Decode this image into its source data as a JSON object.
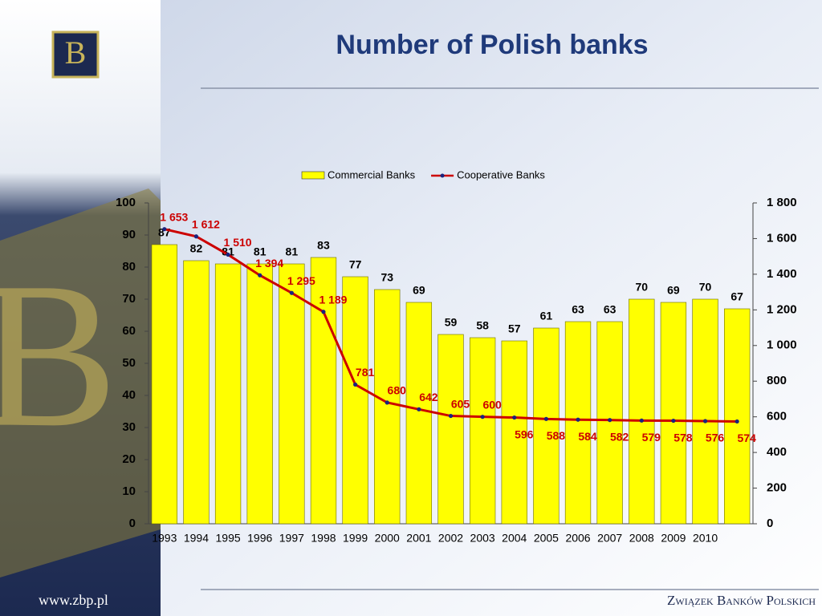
{
  "slide": {
    "url": "www.zbp.pl",
    "org": "Związek Banków Polskich"
  },
  "chart_data": {
    "type": "bar_line",
    "title": "Number of Polish banks",
    "categories": [
      "1993",
      "1994",
      "1995",
      "1996",
      "1997",
      "1998",
      "1999",
      "2000",
      "2001",
      "2002",
      "2003",
      "2004",
      "2005",
      "2006",
      "2007",
      "2008",
      "2009",
      "2010",
      null
    ],
    "series": [
      {
        "name": "Commercial Banks",
        "type": "bar",
        "color": "#ffff00",
        "values": [
          87,
          82,
          81,
          81,
          81,
          83,
          77,
          73,
          69,
          59,
          58,
          57,
          61,
          63,
          63,
          70,
          69,
          70,
          67
        ]
      },
      {
        "name": "Cooperative Banks",
        "type": "line",
        "color": "#cc0000",
        "marker_color": "#1a237e",
        "axis": "y2",
        "values": [
          1653,
          1612,
          1510,
          1394,
          1295,
          1189,
          781,
          680,
          642,
          605,
          600,
          596,
          588,
          584,
          582,
          579,
          578,
          576,
          574
        ],
        "value_labels": [
          "1 653",
          "1 612",
          "1 510",
          "1 394",
          "1 295",
          "1 189",
          "781",
          "680",
          "642",
          "605",
          "600",
          "596",
          "588",
          "584",
          "582",
          "579",
          "578",
          "576",
          "574"
        ]
      }
    ],
    "ylim": [
      0,
      100
    ],
    "yticks": [
      0,
      10,
      20,
      30,
      40,
      50,
      60,
      70,
      80,
      90,
      100
    ],
    "y2lim": [
      0,
      1800
    ],
    "y2ticks": [
      0,
      200,
      400,
      600,
      800,
      {
        "value": 1000,
        "label": "1 000"
      },
      {
        "value": 1200,
        "label": "1 200"
      },
      {
        "value": 1400,
        "label": "1 400"
      },
      {
        "value": 1600,
        "label": "1 600"
      },
      {
        "value": 1800,
        "label": "1 800"
      }
    ],
    "grid": false,
    "legend": "top"
  }
}
